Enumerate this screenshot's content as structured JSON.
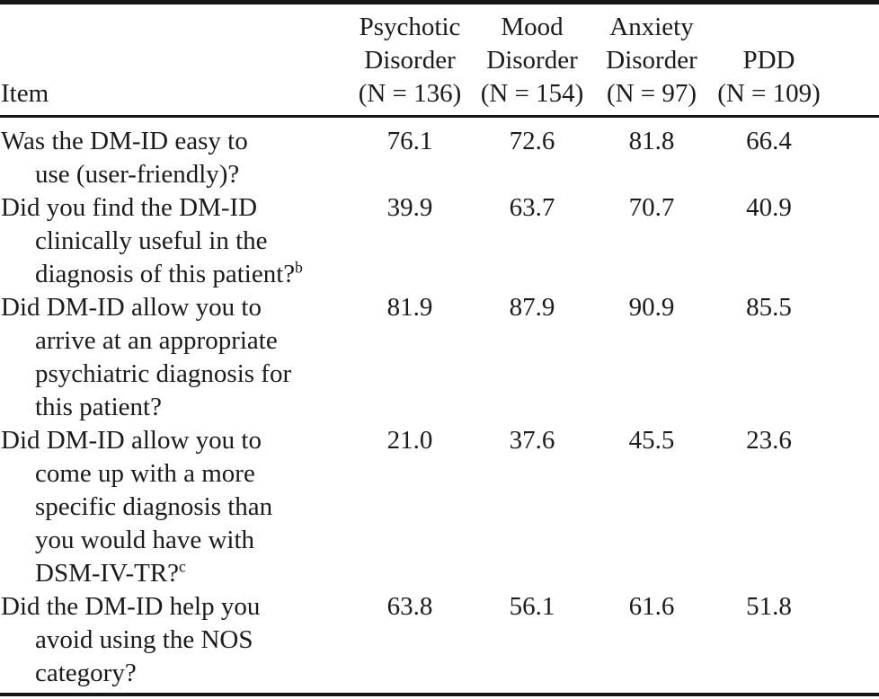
{
  "colors": {
    "text": "#1b1b1b",
    "rule": "#161616",
    "background": "#ffffff"
  },
  "table": {
    "header": {
      "item_label": "Item",
      "columns": [
        {
          "name_lines": [
            "Psychotic",
            "Disorder"
          ],
          "n_label": "(N = 136)"
        },
        {
          "name_lines": [
            "Mood",
            "Disorder"
          ],
          "n_label": "(N = 154)"
        },
        {
          "name_lines": [
            "Anxiety",
            "Disorder"
          ],
          "n_label": "(N = 97)"
        },
        {
          "name_lines": [
            "PDD"
          ],
          "n_label": "(N = 109)"
        }
      ]
    },
    "rows": [
      {
        "item_lines": [
          "Was the DM-ID easy to",
          "use (user-friendly)?"
        ],
        "footnote_mark": "",
        "values": [
          "76.1",
          "72.6",
          "81.8",
          "66.4"
        ]
      },
      {
        "item_lines": [
          "Did you find the DM-ID",
          "clinically useful in the",
          "diagnosis of this patient?"
        ],
        "footnote_mark": "b",
        "values": [
          "39.9",
          "63.7",
          "70.7",
          "40.9"
        ]
      },
      {
        "item_lines": [
          "Did DM-ID allow you to",
          "arrive at an appropriate",
          "psychiatric diagnosis for",
          "this patient?"
        ],
        "footnote_mark": "",
        "values": [
          "81.9",
          "87.9",
          "90.9",
          "85.5"
        ]
      },
      {
        "item_lines": [
          "Did DM-ID allow you to",
          "come up with a more",
          "specific diagnosis than",
          "you would have with",
          "DSM-IV-TR?"
        ],
        "footnote_mark": "c",
        "values": [
          "21.0",
          "37.6",
          "45.5",
          "23.6"
        ]
      },
      {
        "item_lines": [
          "Did the DM-ID help you",
          "avoid using the NOS",
          "category?"
        ],
        "footnote_mark": "",
        "values": [
          "63.8",
          "56.1",
          "61.6",
          "51.8"
        ]
      }
    ]
  }
}
